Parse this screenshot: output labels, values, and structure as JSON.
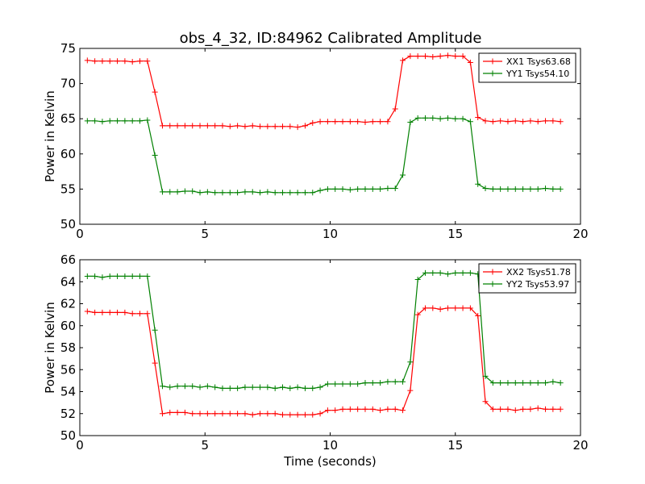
{
  "figure": {
    "title": "obs_4_32, ID:84962 Calibrated Amplitude"
  },
  "chart_data": [
    {
      "type": "line",
      "title": "obs_4_32, ID:84962 Calibrated Amplitude",
      "xlabel": "",
      "ylabel": "Power in Kelvin",
      "xlim": [
        0,
        20
      ],
      "ylim": [
        50,
        75
      ],
      "xticks": [
        0,
        5,
        10,
        15,
        20
      ],
      "yticks": [
        50,
        55,
        60,
        65,
        70,
        75
      ],
      "grid": false,
      "legend_position": "top-right",
      "x": [
        0.3,
        0.6,
        0.9,
        1.2,
        1.5,
        1.8,
        2.1,
        2.4,
        2.7,
        3.0,
        3.3,
        3.6,
        3.9,
        4.2,
        4.5,
        4.8,
        5.1,
        5.4,
        5.7,
        6.0,
        6.3,
        6.6,
        6.9,
        7.2,
        7.5,
        7.8,
        8.1,
        8.4,
        8.7,
        9.0,
        9.3,
        9.6,
        9.9,
        10.2,
        10.5,
        10.8,
        11.1,
        11.4,
        11.7,
        12.0,
        12.3,
        12.6,
        12.9,
        13.2,
        13.5,
        13.8,
        14.1,
        14.4,
        14.7,
        15.0,
        15.3,
        15.6,
        15.9,
        16.2,
        16.5,
        16.8,
        17.1,
        17.4,
        17.7,
        18.0,
        18.3,
        18.6,
        18.9,
        19.2
      ],
      "series": [
        {
          "name": "XX1 Tsys63.68",
          "color": "#ff0000",
          "values": [
            73.3,
            73.2,
            73.2,
            73.2,
            73.2,
            73.2,
            73.1,
            73.2,
            73.2,
            68.8,
            64.0,
            64.0,
            64.0,
            64.0,
            64.0,
            64.0,
            64.0,
            64.0,
            64.0,
            63.9,
            64.0,
            63.9,
            64.0,
            63.9,
            63.9,
            63.9,
            63.9,
            63.9,
            63.8,
            64.0,
            64.4,
            64.6,
            64.6,
            64.6,
            64.6,
            64.6,
            64.6,
            64.5,
            64.6,
            64.6,
            64.6,
            66.4,
            73.3,
            73.9,
            73.9,
            73.9,
            73.8,
            73.9,
            74.0,
            73.9,
            73.9,
            73.0,
            65.2,
            64.7,
            64.6,
            64.7,
            64.6,
            64.7,
            64.6,
            64.7,
            64.6,
            64.7,
            64.7,
            64.6
          ]
        },
        {
          "name": "YY1 Tsys54.10",
          "color": "#008000",
          "values": [
            64.7,
            64.7,
            64.6,
            64.7,
            64.7,
            64.7,
            64.7,
            64.7,
            64.8,
            59.8,
            54.6,
            54.6,
            54.6,
            54.7,
            54.7,
            54.5,
            54.6,
            54.5,
            54.5,
            54.5,
            54.5,
            54.6,
            54.6,
            54.5,
            54.6,
            54.5,
            54.5,
            54.5,
            54.5,
            54.5,
            54.5,
            54.8,
            55.0,
            55.0,
            55.0,
            54.9,
            55.0,
            55.0,
            55.0,
            55.0,
            55.1,
            55.1,
            57.0,
            64.5,
            65.1,
            65.1,
            65.1,
            65.0,
            65.1,
            65.0,
            65.0,
            64.6,
            55.7,
            55.1,
            55.0,
            55.0,
            55.0,
            55.0,
            55.0,
            55.0,
            55.0,
            55.1,
            55.0,
            55.0
          ]
        }
      ]
    },
    {
      "type": "line",
      "title": "",
      "xlabel": "Time (seconds)",
      "ylabel": "Power in Kelvin",
      "xlim": [
        0,
        20
      ],
      "ylim": [
        50,
        66
      ],
      "xticks": [
        0,
        5,
        10,
        15,
        20
      ],
      "yticks": [
        50,
        52,
        54,
        56,
        58,
        60,
        62,
        64,
        66
      ],
      "grid": false,
      "legend_position": "top-right",
      "x": [
        0.3,
        0.6,
        0.9,
        1.2,
        1.5,
        1.8,
        2.1,
        2.4,
        2.7,
        3.0,
        3.3,
        3.6,
        3.9,
        4.2,
        4.5,
        4.8,
        5.1,
        5.4,
        5.7,
        6.0,
        6.3,
        6.6,
        6.9,
        7.2,
        7.5,
        7.8,
        8.1,
        8.4,
        8.7,
        9.0,
        9.3,
        9.6,
        9.9,
        10.2,
        10.5,
        10.8,
        11.1,
        11.4,
        11.7,
        12.0,
        12.3,
        12.6,
        12.9,
        13.2,
        13.5,
        13.8,
        14.1,
        14.4,
        14.7,
        15.0,
        15.3,
        15.6,
        15.9,
        16.2,
        16.5,
        16.8,
        17.1,
        17.4,
        17.7,
        18.0,
        18.3,
        18.6,
        18.9,
        19.2
      ],
      "series": [
        {
          "name": "XX2 Tsys51.78",
          "color": "#ff0000",
          "values": [
            61.3,
            61.2,
            61.2,
            61.2,
            61.2,
            61.2,
            61.1,
            61.1,
            61.1,
            56.6,
            52.0,
            52.1,
            52.1,
            52.1,
            52.0,
            52.0,
            52.0,
            52.0,
            52.0,
            52.0,
            52.0,
            52.0,
            51.9,
            52.0,
            52.0,
            52.0,
            51.9,
            51.9,
            51.9,
            51.9,
            51.9,
            52.0,
            52.3,
            52.3,
            52.4,
            52.4,
            52.4,
            52.4,
            52.4,
            52.3,
            52.4,
            52.4,
            52.3,
            54.1,
            61.0,
            61.6,
            61.6,
            61.5,
            61.6,
            61.6,
            61.6,
            61.6,
            60.9,
            53.1,
            52.4,
            52.4,
            52.4,
            52.3,
            52.4,
            52.4,
            52.5,
            52.4,
            52.4,
            52.4
          ]
        },
        {
          "name": "YY2 Tsys53.97",
          "color": "#008000",
          "values": [
            64.5,
            64.5,
            64.4,
            64.5,
            64.5,
            64.5,
            64.5,
            64.5,
            64.5,
            59.6,
            54.5,
            54.4,
            54.5,
            54.5,
            54.5,
            54.4,
            54.5,
            54.4,
            54.3,
            54.3,
            54.3,
            54.4,
            54.4,
            54.4,
            54.4,
            54.3,
            54.4,
            54.3,
            54.4,
            54.3,
            54.3,
            54.4,
            54.7,
            54.7,
            54.7,
            54.7,
            54.7,
            54.8,
            54.8,
            54.8,
            54.9,
            54.9,
            54.9,
            56.7,
            64.2,
            64.8,
            64.8,
            64.8,
            64.7,
            64.8,
            64.8,
            64.8,
            64.7,
            55.4,
            54.8,
            54.8,
            54.8,
            54.8,
            54.8,
            54.8,
            54.8,
            54.8,
            54.9,
            54.8
          ]
        }
      ]
    }
  ]
}
